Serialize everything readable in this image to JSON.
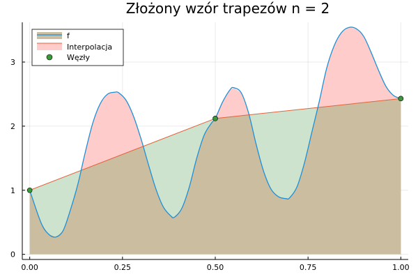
{
  "chart_data": {
    "type": "area",
    "title": "Złożony wzór trapezów n = 2",
    "xlabel": "",
    "ylabel": "",
    "xlim": [
      -0.02,
      1.02
    ],
    "ylim": [
      -0.08,
      3.62
    ],
    "xticks": [
      0.0,
      0.25,
      0.5,
      0.75,
      1.0
    ],
    "xtick_labels": [
      "0.00",
      "0.25",
      "0.50",
      "0.75",
      "1.00"
    ],
    "yticks": [
      0,
      1,
      2,
      3
    ],
    "ytick_labels": [
      "0",
      "1",
      "2",
      "3"
    ],
    "grid": true,
    "legend_position": "top-left",
    "series": [
      {
        "name": "f",
        "kind": "line",
        "color": "#1f8fd6",
        "x": [
          0.0,
          0.03,
          0.05,
          0.07,
          0.09,
          0.11,
          0.13,
          0.15,
          0.17,
          0.19,
          0.21,
          0.23,
          0.24,
          0.26,
          0.28,
          0.3,
          0.32,
          0.34,
          0.36,
          0.38,
          0.39,
          0.41,
          0.43,
          0.45,
          0.47,
          0.49,
          0.5,
          0.52,
          0.54,
          0.55,
          0.57,
          0.59,
          0.61,
          0.63,
          0.65,
          0.67,
          0.69,
          0.7,
          0.72,
          0.74,
          0.76,
          0.78,
          0.8,
          0.82,
          0.84,
          0.86,
          0.88,
          0.9,
          0.92,
          0.94,
          0.96,
          0.98,
          1.0
        ],
        "y": [
          1.0,
          0.5,
          0.32,
          0.27,
          0.37,
          0.7,
          1.1,
          1.6,
          2.05,
          2.35,
          2.5,
          2.53,
          2.52,
          2.4,
          2.15,
          1.8,
          1.4,
          1.02,
          0.74,
          0.6,
          0.58,
          0.72,
          1.05,
          1.5,
          1.86,
          2.05,
          2.12,
          2.38,
          2.57,
          2.6,
          2.52,
          2.2,
          1.72,
          1.3,
          1.02,
          0.9,
          0.87,
          0.88,
          1.05,
          1.42,
          1.9,
          2.38,
          2.9,
          3.25,
          3.46,
          3.54,
          3.52,
          3.4,
          3.15,
          2.87,
          2.62,
          2.48,
          2.43
        ]
      },
      {
        "name": "Interpolacja",
        "kind": "line",
        "color": "#e2633c",
        "x": [
          0.0,
          0.5,
          1.0
        ],
        "y": [
          1.0,
          2.12,
          2.43
        ]
      },
      {
        "name": "Węzły",
        "kind": "scatter",
        "color": "#3a9a3a",
        "x": [
          0.0,
          0.5,
          1.0
        ],
        "y": [
          1.0,
          2.12,
          2.43
        ]
      }
    ],
    "fills": {
      "overlap_color": "#cbbd9f",
      "f_above_color": "#ffcccc",
      "interp_above_color": "#cde3cd"
    }
  }
}
